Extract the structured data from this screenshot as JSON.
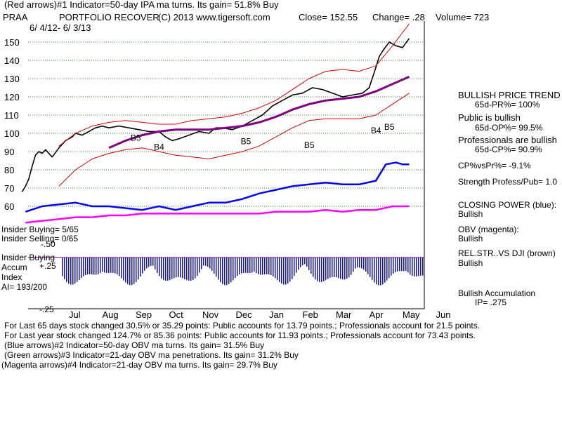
{
  "header": {
    "line1": "(Red arrows)#1 Indicator=50-day IPA ma turns. Its gain= 51.8% Buy",
    "symbol": "PRAA",
    "name": "PORTFOLIO RECOVER",
    "copyright": "(C) 2013 www.tigersoft.com",
    "close": "Close=  152.55",
    "change": "Change= .28",
    "volume": "Volume= 723",
    "date_range": "6/ 4/12- 6/ 3/13"
  },
  "right_panel": {
    "trend_title": "BULLISH PRICE TREND",
    "pr_pct": "65d-PR%= 100%",
    "public_title": "Public is bullish",
    "op_pct": "65d-OP%= 99.5%",
    "prof_title": "Professionals are bullish",
    "cp_pct": "65d-CP%= 90.9%",
    "cp_vs_pr": "CP%vsPr%= -9.1%",
    "strength": "Strength Profess/Pub= 1.0",
    "closing_power": "CLOSING POWER (blue):",
    "closing_power_val": "Bullish",
    "obv": "OBV (magenta):",
    "obv_val": "Bullish",
    "relstr": "REL.STR..VS DJI (brown)",
    "relstr_val": "Bullish",
    "accum": "Bullish Accumulation",
    "ip": "IP=  .275"
  },
  "lower_labels": {
    "insider_buying_count": "Insider Buying= 5/65",
    "insider_selling_count": "Insider Selling= 0/65",
    "insider_buying": "Insider Buying",
    "accum": "Accum",
    "accum_val": "+.25",
    "index": "Index",
    "ai": "AI= 193/200",
    "minus50": "-.50",
    "minus25": "-.25"
  },
  "footer": {
    "line1": "For Last 65 days stock changed  30.5% or  35.29 points:  Public accounts for  13.79 points.;  Professionals account for  21.5 points.",
    "line2": "For Last year stock changed  124.7% or  85.36 points:  Public accounts for  11.93 points.;  Professionals account for  73.43 points.",
    "line3": "(Blue arrows)#2 Indicator=50-day OBV ma turns. Its gain= 31.5% Buy",
    "line4": "(Green arrows)#3 Indicator=21-day OBV ma penetrations. Its gain= 31.2% Buy",
    "line5": "(Magenta arrows)#4 Indicator=21-day OBV ma turns. Its gain= 29.7% Buy"
  },
  "colors": {
    "price": "#000000",
    "ma50": "#800080",
    "band": "#d40000",
    "closing_power": "#0000ff",
    "obv": "#ff00ff",
    "grid": "#2e8b2e",
    "accum": "#1414a0",
    "insider_line": "#800080"
  },
  "chart_data": {
    "type": "line",
    "title": "PRAA PORTFOLIO RECOVER",
    "xlabel": "",
    "ylabel": "",
    "x_ticks": [
      "Jul",
      "Aug",
      "Sep",
      "Oct",
      "Nov",
      "Dec",
      "Jan",
      "Feb",
      "Mar",
      "Apr",
      "May",
      "Jun"
    ],
    "y_ticks": [
      60,
      70,
      80,
      90,
      100,
      110,
      120,
      130,
      140,
      150
    ],
    "ylim": [
      55,
      158
    ],
    "grid": true,
    "x_months": [
      0,
      1,
      2,
      3,
      4,
      5,
      6,
      7,
      8,
      9,
      10,
      11
    ],
    "series": [
      {
        "name": "Price (close)",
        "x": [
          -0.6,
          -0.5,
          -0.4,
          -0.3,
          -0.2,
          -0.1,
          0.0,
          0.1,
          0.3,
          0.5,
          0.7,
          0.9,
          1.0,
          1.2,
          1.4,
          1.6,
          1.8,
          2.0,
          2.3,
          2.6,
          2.9,
          3.2,
          3.5,
          3.7,
          3.9,
          4.1,
          4.4,
          4.7,
          5.0,
          5.2,
          5.4,
          5.7,
          6.0,
          6.3,
          6.6,
          6.9,
          7.2,
          7.5,
          7.8,
          8.1,
          8.4,
          8.7,
          9.0,
          9.3,
          9.6,
          9.8,
          10.0,
          10.1,
          10.2,
          10.4,
          10.6,
          10.8,
          11.0
        ],
        "values": [
          68,
          71,
          75,
          82,
          88,
          90,
          89,
          91,
          87,
          92,
          96,
          98,
          100,
          99,
          101,
          103,
          104,
          103,
          104,
          103,
          102,
          101,
          101,
          98,
          96,
          97,
          99,
          101,
          100,
          103,
          103,
          102,
          104,
          107,
          110,
          115,
          118,
          121,
          122,
          125,
          124,
          122,
          120,
          121,
          122,
          125,
          136,
          142,
          145,
          150,
          148,
          147,
          152
        ]
      },
      {
        "name": "50-day MA",
        "x": [
          2.0,
          2.5,
          3.0,
          3.5,
          4.0,
          4.5,
          5.0,
          5.5,
          6.0,
          6.5,
          7.0,
          7.5,
          8.0,
          8.5,
          9.0,
          9.5,
          10.0,
          10.5,
          11.0
        ],
        "values": [
          92,
          96,
          99,
          101,
          102,
          102,
          102,
          103,
          104,
          106,
          109,
          113,
          116,
          118,
          119,
          120,
          123,
          127,
          131
        ]
      },
      {
        "name": "Upper band",
        "x": [
          0.5,
          1.0,
          1.5,
          2.0,
          2.5,
          3.0,
          3.5,
          4.0,
          4.5,
          5.0,
          5.5,
          6.0,
          6.5,
          7.0,
          7.5,
          8.0,
          8.5,
          9.0,
          9.5,
          10.0,
          10.5,
          11.0
        ],
        "values": [
          93,
          100,
          104,
          106,
          107,
          106,
          105,
          105,
          107,
          108,
          109,
          111,
          114,
          118,
          124,
          130,
          134,
          135,
          134,
          137,
          148,
          160
        ]
      },
      {
        "name": "Lower band",
        "x": [
          0.5,
          1.0,
          1.5,
          2.0,
          2.5,
          3.0,
          3.5,
          4.0,
          4.5,
          5.0,
          5.5,
          6.0,
          6.5,
          7.0,
          7.5,
          8.0,
          8.5,
          9.0,
          9.5,
          10.0,
          10.5,
          11.0
        ],
        "values": [
          71,
          80,
          86,
          89,
          91,
          92,
          90,
          88,
          87,
          86,
          88,
          90,
          93,
          98,
          103,
          107,
          108,
          108,
          108,
          110,
          116,
          122
        ]
      },
      {
        "name": "Closing Power (blue)",
        "x": [
          -0.5,
          0.0,
          0.5,
          1.0,
          1.5,
          2.0,
          2.5,
          3.0,
          3.5,
          4.0,
          4.5,
          5.0,
          5.5,
          6.0,
          6.5,
          7.0,
          7.5,
          8.0,
          8.5,
          9.0,
          9.5,
          10.0,
          10.3,
          10.6,
          10.8,
          11.0
        ],
        "values": [
          57,
          60,
          61,
          62,
          60,
          60,
          59,
          58,
          60,
          58,
          60,
          62,
          62,
          64,
          67,
          69,
          71,
          72,
          73,
          72,
          72,
          74,
          83,
          84,
          83,
          83
        ]
      },
      {
        "name": "OBV (magenta)",
        "x": [
          -0.5,
          0.0,
          0.5,
          1.0,
          1.5,
          2.0,
          2.5,
          3.0,
          3.5,
          4.0,
          4.5,
          5.0,
          5.5,
          6.0,
          6.5,
          7.0,
          7.5,
          8.0,
          8.5,
          9.0,
          9.5,
          10.0,
          10.5,
          11.0
        ],
        "values": [
          51,
          52,
          53,
          54,
          54,
          55,
          55,
          56,
          56,
          56,
          56,
          56,
          56,
          56,
          56,
          57,
          57,
          57,
          58,
          57,
          58,
          58,
          60,
          60
        ]
      }
    ],
    "arrow_labels": [
      "B5",
      "B4",
      "B5",
      "B5",
      "B4",
      "B5"
    ]
  }
}
